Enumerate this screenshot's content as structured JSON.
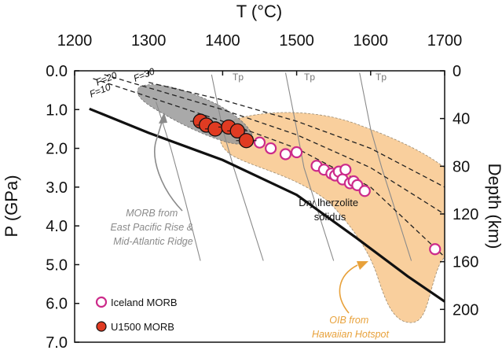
{
  "chart_data": {
    "type": "scatter",
    "title": "",
    "top_axis": {
      "label": "T (°C)",
      "min": 1200,
      "max": 1700,
      "ticks": [
        "1200",
        "1300",
        "1400",
        "1500",
        "1600",
        "1700"
      ]
    },
    "left_axis": {
      "label": "P (GPa)",
      "min": 0,
      "max": 7,
      "inverted": true,
      "ticks": [
        "0.0",
        "1.0",
        "2.0",
        "3.0",
        "4.0",
        "5.0",
        "6.0",
        "7.0"
      ]
    },
    "right_axis": {
      "label": "Depth (km)",
      "ticks": [
        "0",
        "40",
        "80",
        "120",
        "160",
        "200"
      ]
    },
    "legend": {
      "position": "bottom-left",
      "items": [
        {
          "label": "Iceland MORB",
          "marker": "open-circle",
          "color": "#cc2a8a"
        },
        {
          "label": "U1500 MORB",
          "marker": "filled-circle",
          "color": "#e03b22"
        }
      ]
    },
    "series": [
      {
        "name": "Iceland MORB",
        "points": [
          [
            1430,
            1.75
          ],
          [
            1450,
            1.85
          ],
          [
            1465,
            2.0
          ],
          [
            1485,
            2.15
          ],
          [
            1500,
            2.1
          ],
          [
            1527,
            2.45
          ],
          [
            1537,
            2.55
          ],
          [
            1547,
            2.65
          ],
          [
            1552,
            2.7
          ],
          [
            1557,
            2.6
          ],
          [
            1562,
            2.8
          ],
          [
            1566,
            2.55
          ],
          [
            1572,
            2.9
          ],
          [
            1577,
            2.85
          ],
          [
            1582,
            2.95
          ],
          [
            1592,
            3.1
          ],
          [
            1687,
            4.6
          ]
        ]
      },
      {
        "name": "U1500 MORB",
        "points": [
          [
            1370,
            1.3
          ],
          [
            1378,
            1.4
          ],
          [
            1390,
            1.5
          ],
          [
            1408,
            1.45
          ],
          [
            1420,
            1.55
          ],
          [
            1432,
            1.8
          ]
        ]
      }
    ],
    "reference_lines": {
      "dry_solidus": [
        [
          1220,
          0.98
        ],
        [
          1300,
          1.6
        ],
        [
          1400,
          2.3
        ],
        [
          1500,
          3.2
        ],
        [
          1580,
          4.3
        ],
        [
          1650,
          5.3
        ],
        [
          1700,
          5.95
        ]
      ],
      "melt_fraction_curves": [
        {
          "label": "F=30",
          "points": [
            [
              1300,
              0.3
            ],
            [
              1400,
              0.75
            ],
            [
              1500,
              1.3
            ],
            [
              1600,
              2.0
            ],
            [
              1700,
              3.0
            ]
          ]
        },
        {
          "label": "F=20",
          "points": [
            [
              1240,
              0.1
            ],
            [
              1400,
              1.0
            ],
            [
              1500,
              1.65
            ],
            [
              1600,
              2.5
            ],
            [
              1700,
              3.7
            ]
          ]
        },
        {
          "label": "F=10",
          "points": [
            [
              1225,
              0.2
            ],
            [
              1400,
              1.3
            ],
            [
              1500,
              2.0
            ],
            [
              1600,
              3.0
            ],
            [
              1700,
              4.8
            ]
          ]
        }
      ],
      "adiabats": [
        {
          "label": "Tp",
          "points": [
            [
              1385,
              0.1
            ],
            [
              1400,
              1.5
            ],
            [
              1415,
              2.5
            ],
            [
              1435,
              3.7
            ],
            [
              1455,
              4.9
            ]
          ]
        },
        {
          "label": "Tp",
          "points": [
            [
              1485,
              0.05
            ],
            [
              1500,
              1.5
            ],
            [
              1510,
              2.5
            ],
            [
              1530,
              3.7
            ],
            [
              1550,
              4.9
            ]
          ]
        },
        {
          "label": "Tp",
          "points": [
            [
              1585,
              0.05
            ],
            [
              1600,
              1.5
            ],
            [
              1615,
              2.5
            ],
            [
              1635,
              3.7
            ],
            [
              1655,
              4.9
            ]
          ]
        }
      ],
      "unlabeled_adiabat": [
        [
          1310,
          0.8
        ],
        [
          1330,
          2.0
        ],
        [
          1350,
          3.4
        ],
        [
          1370,
          4.9
        ]
      ]
    },
    "regions": [
      {
        "label": "MORB from East Pacific Rise & Mid-Atlantic Ridge",
        "color": "#9a9a9a"
      },
      {
        "label": "OIB from Hawaiian Hotspot",
        "color": "#f8c78c"
      }
    ],
    "annotations": {
      "morb_gray": [
        "MORB from",
        "East Pacific Rise &",
        "Mid-Atlantic Ridge"
      ],
      "oib": [
        "OIB from",
        "Hawaiian Hotspot"
      ],
      "solidus": [
        "Dry lherzolite",
        "solidus"
      ],
      "f30": "F=30",
      "f20": "F=20",
      "f10": "F=10",
      "tp": "Tp"
    }
  }
}
